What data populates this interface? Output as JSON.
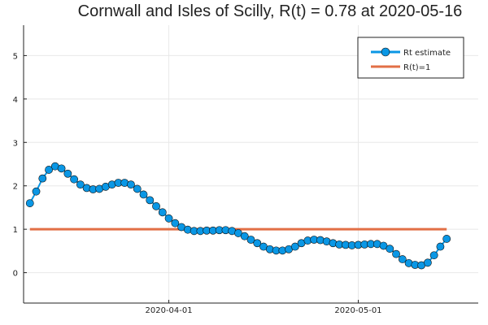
{
  "chart_data": {
    "type": "line",
    "title": "Cornwall and Isles of Scilly, R(t) = 0.78 at 2020-05-16",
    "xlabel": "",
    "ylabel": "",
    "x_ticks": [
      {
        "date": "2020-04-01",
        "label": "2020-04-01"
      },
      {
        "date": "2020-05-01",
        "label": "2020-05-01"
      }
    ],
    "y_ticks": [
      0,
      1,
      2,
      3,
      4,
      5
    ],
    "xlim": [
      "2020-03-09",
      "2020-05-20"
    ],
    "ylim": [
      -0.7,
      5.7
    ],
    "grid": true,
    "legend_position": "top-right",
    "x_start": "2020-03-10",
    "series": [
      {
        "name": "Rt estimate",
        "style": "line-with-markers",
        "color": "#0a97e5",
        "values": [
          1.6,
          1.87,
          2.17,
          2.37,
          2.45,
          2.4,
          2.28,
          2.15,
          2.03,
          1.95,
          1.92,
          1.93,
          1.98,
          2.03,
          2.07,
          2.07,
          2.03,
          1.93,
          1.8,
          1.67,
          1.53,
          1.39,
          1.25,
          1.14,
          1.05,
          0.99,
          0.96,
          0.96,
          0.97,
          0.97,
          0.98,
          0.98,
          0.96,
          0.91,
          0.84,
          0.76,
          0.68,
          0.6,
          0.54,
          0.51,
          0.51,
          0.54,
          0.6,
          0.68,
          0.74,
          0.76,
          0.75,
          0.72,
          0.68,
          0.65,
          0.64,
          0.63,
          0.64,
          0.65,
          0.66,
          0.66,
          0.62,
          0.55,
          0.43,
          0.31,
          0.22,
          0.18,
          0.17,
          0.23,
          0.4,
          0.6,
          0.78
        ]
      },
      {
        "name": "R(t)=1",
        "style": "line",
        "color": "#e26f46",
        "values": [
          1,
          1
        ]
      }
    ]
  }
}
